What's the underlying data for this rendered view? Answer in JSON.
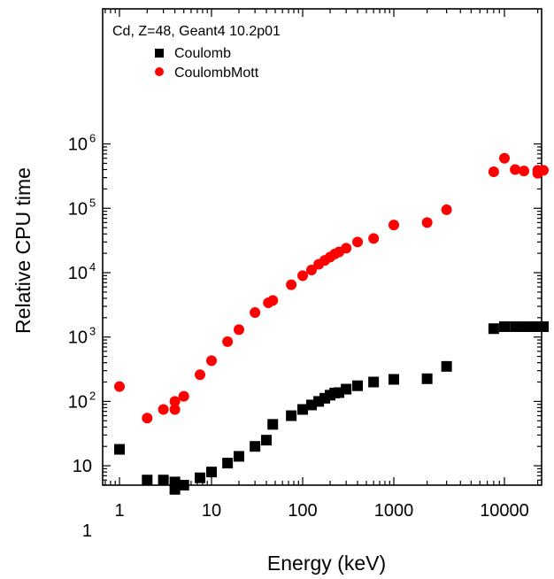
{
  "chart_data": {
    "type": "scatter",
    "title": "Cd, Z=48, Geant4 10.2p01",
    "xlabel": "Energy (keV)",
    "ylabel": "Relative CPU time",
    "x_scale": "log",
    "y_scale": "log",
    "xlim": [
      0.7,
      30000
    ],
    "ylim": [
      0.05,
      1000000
    ],
    "x_ticks": [
      {
        "value": 1,
        "label": "1"
      },
      {
        "value": 10,
        "label": "10"
      },
      {
        "value": 100,
        "label": "100"
      },
      {
        "value": 1000,
        "label": "1000"
      },
      {
        "value": 10000,
        "label": "10000"
      }
    ],
    "y_ticks": [
      {
        "value": 1,
        "base": "1",
        "exp": ""
      },
      {
        "value": 10,
        "base": "10",
        "exp": ""
      },
      {
        "value": 100,
        "base": "10",
        "exp": "2"
      },
      {
        "value": 1000,
        "base": "10",
        "exp": "3"
      },
      {
        "value": 10000,
        "base": "10",
        "exp": "4"
      },
      {
        "value": 100000,
        "base": "10",
        "exp": "5"
      },
      {
        "value": 1000000,
        "base": "10",
        "exp": "6"
      }
    ],
    "grid": false,
    "legend_position": "top-left",
    "series": [
      {
        "name": "Coulomb",
        "marker": "square",
        "color": "#000000",
        "points": [
          [
            1,
            18
          ],
          [
            2,
            6
          ],
          [
            3,
            6
          ],
          [
            4,
            4.3
          ],
          [
            4,
            5.6
          ],
          [
            5,
            5
          ],
          [
            7.5,
            6.5
          ],
          [
            10,
            8
          ],
          [
            15,
            11
          ],
          [
            20,
            14
          ],
          [
            30,
            20
          ],
          [
            40,
            25
          ],
          [
            47,
            44
          ],
          [
            75,
            60
          ],
          [
            100,
            75
          ],
          [
            125,
            88
          ],
          [
            150,
            100
          ],
          [
            175,
            112
          ],
          [
            200,
            125
          ],
          [
            225,
            135
          ],
          [
            250,
            137
          ],
          [
            300,
            155
          ],
          [
            400,
            175
          ],
          [
            600,
            200
          ],
          [
            1000,
            220
          ],
          [
            2000,
            225
          ],
          [
            3000,
            350
          ],
          [
            8000,
            1350
          ],
          [
            10000,
            1450
          ],
          [
            12500,
            1450
          ],
          [
            15000,
            1450
          ],
          [
            17500,
            1450
          ],
          [
            20000,
            1450
          ],
          [
            22500,
            1450
          ]
        ]
      },
      {
        "name": "CoulombMott",
        "marker": "circle",
        "color": "#ff0000",
        "points": [
          [
            1,
            170
          ],
          [
            2,
            55
          ],
          [
            3,
            75
          ],
          [
            4,
            75
          ],
          [
            4,
            100
          ],
          [
            5,
            120
          ],
          [
            7.5,
            260
          ],
          [
            10,
            430
          ],
          [
            15,
            850
          ],
          [
            20,
            1300
          ],
          [
            30,
            2400
          ],
          [
            42,
            3400
          ],
          [
            47,
            3700
          ],
          [
            75,
            6500
          ],
          [
            100,
            9000
          ],
          [
            125,
            11000
          ],
          [
            150,
            13500
          ],
          [
            175,
            15500
          ],
          [
            200,
            17500
          ],
          [
            225,
            19500
          ],
          [
            250,
            21000
          ],
          [
            300,
            24000
          ],
          [
            400,
            30000
          ],
          [
            600,
            34000
          ],
          [
            1000,
            55000
          ],
          [
            2000,
            60000
          ],
          [
            3000,
            95000
          ],
          [
            8000,
            370000
          ],
          [
            10000,
            600000
          ],
          [
            12500,
            400000
          ],
          [
            15000,
            380000
          ],
          [
            20000,
            350000
          ],
          [
            20000,
            390000
          ],
          [
            22500,
            390000
          ]
        ]
      }
    ]
  }
}
